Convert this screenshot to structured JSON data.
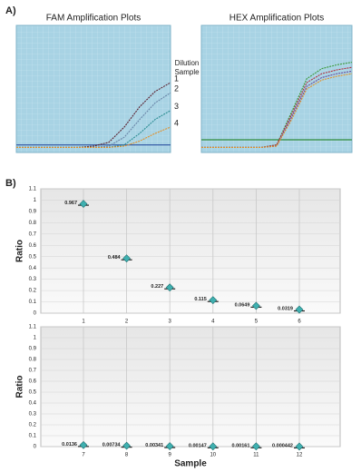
{
  "panel_a_label": "A)",
  "panel_b_label": "B)",
  "chart_data": [
    {
      "type": "line",
      "title": "FAM Amplification Plots",
      "annotation": "Dilution Sample",
      "x": [
        0,
        4,
        8,
        12,
        16,
        20,
        24,
        28,
        32,
        36,
        40
      ],
      "xlim": [
        0,
        40
      ],
      "ylim": [
        0,
        1
      ],
      "threshold": 0.06,
      "threshold_color": "#3a5fa8",
      "series": [
        {
          "name": "1",
          "color": "#5a1f2e",
          "values": [
            0.04,
            0.04,
            0.04,
            0.04,
            0.04,
            0.05,
            0.08,
            0.2,
            0.36,
            0.48,
            0.55
          ]
        },
        {
          "name": "2",
          "color": "#6a86a8",
          "values": [
            0.04,
            0.04,
            0.04,
            0.04,
            0.04,
            0.04,
            0.05,
            0.12,
            0.26,
            0.39,
            0.47
          ]
        },
        {
          "name": "3",
          "color": "#2e8e94",
          "values": [
            0.04,
            0.04,
            0.04,
            0.04,
            0.04,
            0.04,
            0.04,
            0.06,
            0.15,
            0.26,
            0.33
          ]
        },
        {
          "name": "4",
          "color": "#e0902a",
          "values": [
            0.04,
            0.04,
            0.04,
            0.04,
            0.04,
            0.04,
            0.04,
            0.05,
            0.09,
            0.15,
            0.2
          ]
        }
      ]
    },
    {
      "type": "line",
      "title": "HEX Amplification Plots",
      "x": [
        0,
        4,
        8,
        12,
        16,
        20,
        24,
        28,
        32,
        36,
        40
      ],
      "xlim": [
        0,
        40
      ],
      "ylim": [
        0,
        1
      ],
      "threshold": 0.1,
      "threshold_color": "#2f8a3a",
      "series": [
        {
          "color": "#3c9a3c",
          "values": [
            0.04,
            0.04,
            0.04,
            0.04,
            0.04,
            0.06,
            0.32,
            0.58,
            0.66,
            0.69,
            0.71
          ]
        },
        {
          "color": "#b03040",
          "values": [
            0.04,
            0.04,
            0.04,
            0.04,
            0.04,
            0.06,
            0.3,
            0.55,
            0.62,
            0.65,
            0.67
          ]
        },
        {
          "color": "#6a4a9a",
          "values": [
            0.04,
            0.04,
            0.04,
            0.04,
            0.04,
            0.05,
            0.28,
            0.52,
            0.59,
            0.62,
            0.64
          ]
        },
        {
          "color": "#e0902a",
          "values": [
            0.04,
            0.04,
            0.04,
            0.04,
            0.04,
            0.05,
            0.26,
            0.5,
            0.57,
            0.6,
            0.62
          ]
        }
      ]
    },
    {
      "type": "scatter",
      "y_label": "Ratio",
      "categories": [
        "1",
        "2",
        "3",
        "4",
        "5",
        "6"
      ],
      "values": [
        0.967,
        0.484,
        0.227,
        0.115,
        0.0649,
        0.0319
      ],
      "color": "#3fb0b0",
      "ylim": [
        0,
        1.1
      ],
      "yticks": [
        0,
        0.1,
        0.2,
        0.3,
        0.4,
        0.5,
        0.6,
        0.7,
        0.8,
        0.9,
        1,
        1.1
      ],
      "grid": true
    },
    {
      "type": "scatter",
      "y_label": "Ratio",
      "x_label": "Sample",
      "categories": [
        "7",
        "8",
        "9",
        "10",
        "11",
        "12"
      ],
      "values": [
        0.0136,
        0.00734,
        0.00341,
        0.00147,
        0.00161,
        0.000442
      ],
      "color": "#3fb0b0",
      "ylim": [
        0,
        1.1
      ],
      "yticks": [
        0,
        0.1,
        0.2,
        0.3,
        0.4,
        0.5,
        0.6,
        0.7,
        0.8,
        0.9,
        1,
        1.1
      ],
      "grid": true
    }
  ]
}
